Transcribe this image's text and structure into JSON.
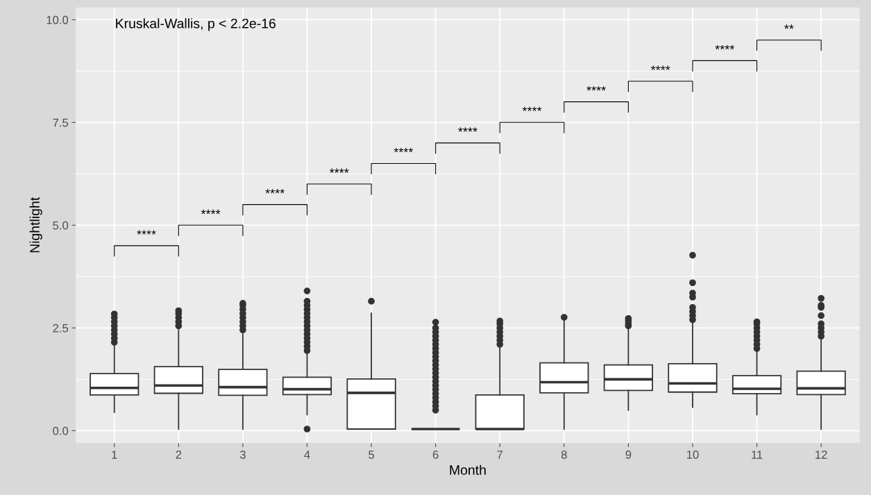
{
  "chart_data": {
    "type": "box",
    "xlabel": "Month",
    "ylabel": "Nightlight",
    "categories": [
      "1",
      "2",
      "3",
      "4",
      "5",
      "6",
      "7",
      "8",
      "9",
      "10",
      "11",
      "12"
    ],
    "boxes": [
      {
        "low": 0.45,
        "q1": 0.87,
        "median": 1.04,
        "q3": 1.39,
        "high": 2.07,
        "outliers": [
          2.15,
          2.25,
          2.35,
          2.45,
          2.55,
          2.65,
          2.75,
          2.84
        ]
      },
      {
        "low": 0.04,
        "q1": 0.91,
        "median": 1.1,
        "q3": 1.56,
        "high": 2.45,
        "outliers": [
          2.55,
          2.65,
          2.75,
          2.85,
          2.92
        ]
      },
      {
        "low": 0.04,
        "q1": 0.86,
        "median": 1.06,
        "q3": 1.49,
        "high": 2.35,
        "outliers": [
          2.45,
          2.55,
          2.65,
          2.75,
          2.85,
          2.95,
          3.05,
          3.1
        ]
      },
      {
        "low": 0.39,
        "q1": 0.88,
        "median": 1.01,
        "q3": 1.3,
        "high": 1.87,
        "outliers": [
          0.04,
          1.95,
          2.05,
          2.15,
          2.25,
          2.35,
          2.45,
          2.55,
          2.65,
          2.75,
          2.85,
          2.95,
          3.05,
          3.15,
          3.4
        ]
      },
      {
        "low": 0.04,
        "q1": 0.04,
        "median": 0.92,
        "q3": 1.26,
        "high": 2.86,
        "outliers": [
          3.15
        ]
      },
      {
        "low": 0.04,
        "q1": 0.04,
        "median": 0.04,
        "q3": 0.04,
        "high": 0.04,
        "outliers": [
          0.5,
          0.6,
          0.7,
          0.8,
          0.9,
          1.0,
          1.1,
          1.2,
          1.3,
          1.4,
          1.5,
          1.6,
          1.7,
          1.8,
          1.9,
          2.0,
          2.1,
          2.2,
          2.3,
          2.4,
          2.5,
          2.64
        ]
      },
      {
        "low": 0.04,
        "q1": 0.04,
        "median": 0.04,
        "q3": 0.87,
        "high": 2.05,
        "outliers": [
          2.1,
          2.2,
          2.3,
          2.4,
          2.5,
          2.6,
          2.67
        ]
      },
      {
        "low": 0.04,
        "q1": 0.92,
        "median": 1.18,
        "q3": 1.65,
        "high": 2.67,
        "outliers": [
          2.76
        ]
      },
      {
        "low": 0.5,
        "q1": 0.98,
        "median": 1.25,
        "q3": 1.6,
        "high": 2.47,
        "outliers": [
          2.55,
          2.6,
          2.67,
          2.73
        ]
      },
      {
        "low": 0.57,
        "q1": 0.94,
        "median": 1.15,
        "q3": 1.63,
        "high": 2.62,
        "outliers": [
          2.7,
          2.8,
          2.9,
          3.0,
          3.25,
          3.35,
          3.6,
          4.27
        ]
      },
      {
        "low": 0.39,
        "q1": 0.9,
        "median": 1.02,
        "q3": 1.34,
        "high": 1.94,
        "outliers": [
          2.0,
          2.1,
          2.2,
          2.3,
          2.4,
          2.5,
          2.6,
          2.65
        ]
      },
      {
        "low": 0.04,
        "q1": 0.88,
        "median": 1.03,
        "q3": 1.45,
        "high": 2.23,
        "outliers": [
          2.3,
          2.4,
          2.5,
          2.6,
          2.8,
          3.0,
          3.05,
          3.22
        ]
      }
    ],
    "ylim": [
      -0.3,
      10.3
    ],
    "yticks": [
      {
        "value": 0,
        "label": "0.0"
      },
      2.5,
      {
        "value": 5,
        "label": "5.0"
      },
      7.5,
      {
        "value": 10,
        "label": "10.0"
      }
    ],
    "grid": true,
    "annotations": [
      "Kruskal-Wallis, p < 2.2e-16",
      "****",
      "****",
      "****",
      "****",
      "****",
      "****",
      "****",
      "****",
      "****",
      "****",
      "**"
    ]
  }
}
